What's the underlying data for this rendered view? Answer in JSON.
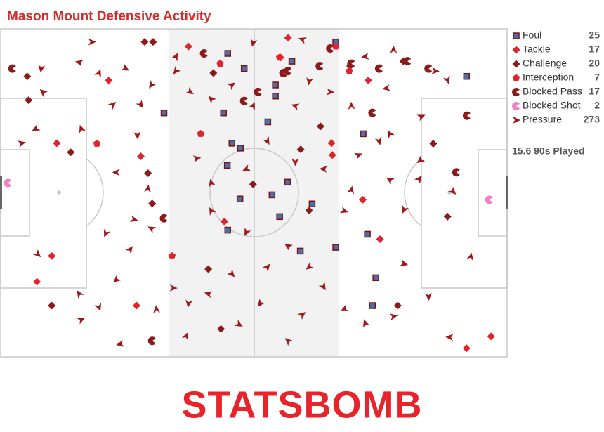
{
  "chart_data": {
    "type": "scatter",
    "title": "Mason Mount Defensive Activity",
    "xlim": [
      0,
      120
    ],
    "ylim": [
      0,
      80
    ],
    "note": "15.6 90s Played",
    "brand": "STATSBOMB",
    "series": [
      {
        "name": "Foul",
        "color": "#4a6fa5",
        "count": 25,
        "x": [
          79.4,
          53.8,
          57.7,
          69.0,
          110.4,
          65.1,
          65.1,
          38.7,
          52.8,
          63.3,
          85.9,
          54.8,
          56.8,
          53.7,
          68.0,
          56.7,
          64.3,
          73.8,
          66.1,
          53.8,
          86.9,
          71.0,
          79.4,
          88.9,
          88.1
        ],
        "y": [
          3.2,
          6.0,
          9.7,
          7.9,
          11.6,
          13.7,
          16.4,
          20.5,
          20.5,
          22.7,
          25.6,
          27.9,
          29.1,
          33.3,
          37.4,
          41.5,
          40.5,
          42.7,
          45.8,
          49.1,
          50.1,
          54.2,
          53.3,
          60.7,
          67.5
        ]
      },
      {
        "name": "Tackle",
        "color": "#e0242c",
        "count": 17,
        "x": [
          68.1,
          44.5,
          25.6,
          66.3,
          87.1,
          13.3,
          33.2,
          78.4,
          78.6,
          53.0,
          12.1,
          8.6,
          32.2,
          85.8,
          89.9,
          116.2,
          110.4
        ],
        "y": [
          2.2,
          4.3,
          12.6,
          7.0,
          12.6,
          27.9,
          31.1,
          27.9,
          30.8,
          47.0,
          55.4,
          61.7,
          67.5,
          41.7,
          51.3,
          75.0,
          77.9
        ]
      },
      {
        "name": "Challenge",
        "color": "#8b1a1a",
        "count": 20,
        "x": [
          34.1,
          36.1,
          6.3,
          6.6,
          50.4,
          16.6,
          34.9,
          35.9,
          75.8,
          102.5,
          105.9,
          49.2,
          12.1,
          52.2,
          94.1,
          71.1,
          59.8,
          73.1,
          82.8,
          95.4
        ],
        "y": [
          3.2,
          3.2,
          11.6,
          17.4,
          10.8,
          30.1,
          35.2,
          42.6,
          23.8,
          28.0,
          45.8,
          58.6,
          67.5,
          73.2,
          67.5,
          29.4,
          37.9,
          44.3,
          9.1,
          7.9
        ]
      },
      {
        "name": "Interception",
        "color": "#e0242c",
        "count": 7,
        "x": [
          66.1,
          47.4,
          22.8,
          40.6,
          79.4,
          82.6,
          52.0
        ],
        "y": [
          7.0,
          25.6,
          28.0,
          55.4,
          4.3,
          10.3,
          8.5
        ]
      },
      {
        "name": "Blocked Pass",
        "color": "#8b1a1a",
        "count": 17,
        "x": [
          2.8,
          48.2,
          67.0,
          89.7,
          101.4,
          110.5,
          88.1,
          108.0,
          38.7,
          35.9,
          96.4,
          75.6,
          83.1,
          57.7,
          61.0,
          78.1,
          68.1
        ],
        "y": [
          9.7,
          6.0,
          10.8,
          9.7,
          9.7,
          21.2,
          20.5,
          35.0,
          46.2,
          76.1,
          7.9,
          9.1,
          8.5,
          17.6,
          15.4,
          4.8,
          10.3
        ]
      },
      {
        "name": "Blocked Shot",
        "color": "#ee82c8",
        "count": 2,
        "x": [
          1.7,
          115.8
        ],
        "y": [
          37.6,
          41.7
        ]
      },
      {
        "name": "Pressure",
        "color": "#a01818",
        "count": 273,
        "x": [
          21.6,
          9.6,
          18.6,
          23.3,
          29.6,
          35.7,
          10.0,
          26.6,
          33.2,
          8.3,
          19.1,
          5.0,
          32.4,
          27.4,
          34.9,
          31.6,
          24.9,
          35.7,
          30.7,
          8.8,
          27.4,
          18.6,
          19.1,
          23.3,
          28.3,
          36.9,
          40.9,
          44.5,
          49.2,
          44.0,
          56.5,
          61.5,
          68.1,
          71.5,
          76.5,
          81.4,
          86.4,
          93.1,
          101.4,
          106.4,
          111.4,
          95.6,
          95.6,
          92.2,
          99.2,
          107.2,
          99.4,
          92.2,
          99.7,
          105.9,
          91.4,
          83.1,
          78.1,
          73.1,
          69.8,
          59.8,
          44.9,
          41.5,
          49.9,
          54.8,
          63.2,
          58.2,
          49.9,
          46.5,
          69.8,
          76.5,
          83.1,
          81.4,
          58.2,
          68.1,
          63.2,
          54.8,
          73.1,
          49.9,
          84.8,
          89.7,
          86.4,
          93.1,
          103.0,
          59.8,
          71.5,
          41.5
        ],
        "y": [
          3.2,
          9.7,
          8.2,
          10.8,
          9.7,
          13.7,
          15.4,
          18.5,
          18.5,
          24.4,
          24.4,
          27.9,
          26.0,
          35.0,
          39.0,
          46.5,
          49.9,
          48.7,
          53.8,
          55.0,
          61.2,
          64.6,
          70.9,
          67.9,
          76.9,
          68.4,
          63.2,
          67.0,
          64.6,
          74.9,
          72.1,
          67.0,
          76.1,
          69.7,
          62.9,
          68.4,
          71.8,
          70.1,
          65.3,
          75.2,
          55.6,
          57.3,
          44.1,
          36.8,
          36.6,
          39.7,
          32.1,
          25.6,
          21.4,
          12.5,
          14.5,
          18.8,
          15.4,
          12.8,
          18.8,
          18.8,
          15.4,
          10.3,
          17.1,
          13.7,
          27.4,
          34.2,
          37.6,
          31.6,
          32.5,
          34.2,
          39.3,
          44.4,
          49.6,
          53.0,
          58.1,
          59.8,
          58.1,
          44.4,
          30.8,
          27.4,
          6.8,
          5.1,
          10.3,
          3.4,
          2.6,
          6.8
        ]
      }
    ]
  }
}
